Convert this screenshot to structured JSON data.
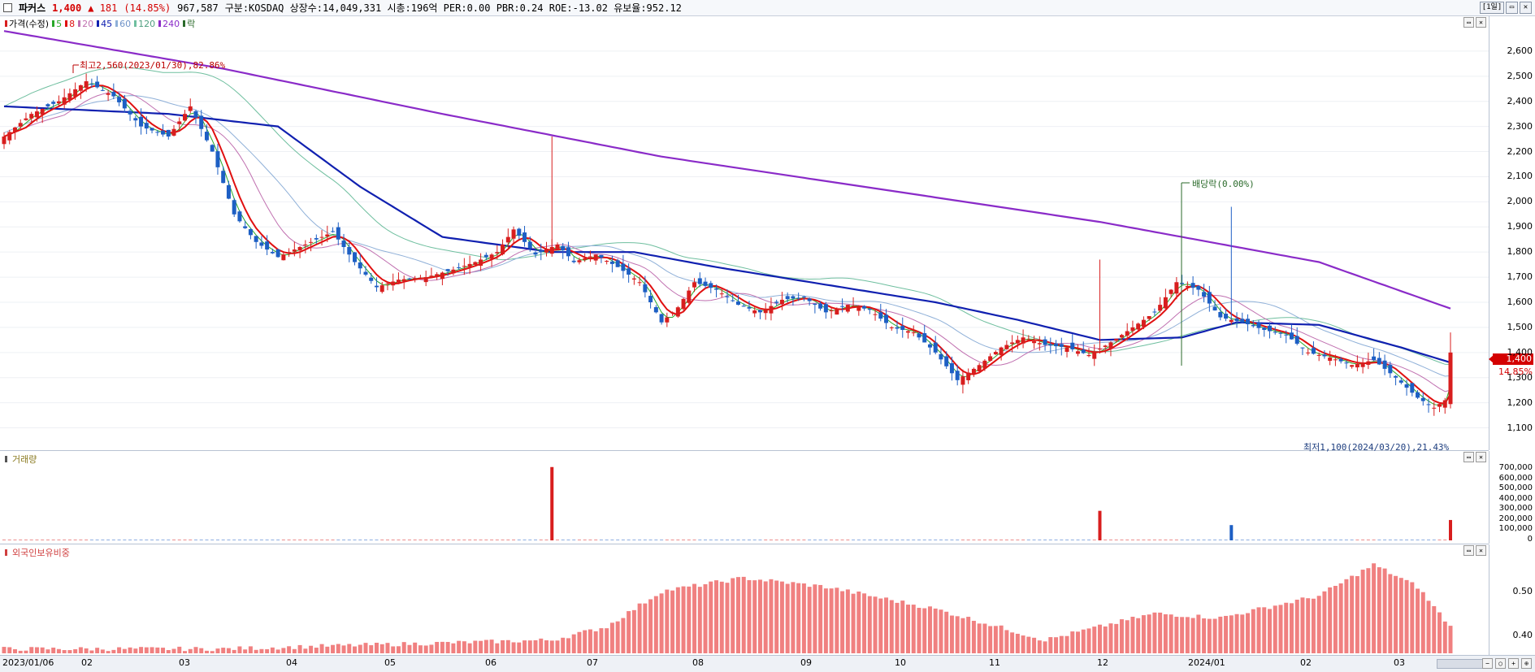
{
  "header": {
    "name": "파커스",
    "price": "1,400",
    "change": "▲ 181",
    "change_pct": "(14.85%)",
    "volume": "967,587",
    "info": "구분:KOSDAQ 상장수:14,049,331 시총:196억 PER:0.00 PBR:0.24 ROE:-13.02 유보율:952.12",
    "period": "[1일]"
  },
  "price_panel": {
    "legend": {
      "price": "가격(수정)",
      "ma5": "5",
      "ma8": "8",
      "ma20": "20",
      "ma45": "45",
      "ma60": "60",
      "ma120": "120",
      "ma240": "240",
      "drop": "락"
    },
    "y_ticks": [
      "2,600",
      "2,500",
      "2,400",
      "2,300",
      "2,200",
      "2,100",
      "2,000",
      "1,900",
      "1,800",
      "1,700",
      "1,600",
      "1,500",
      "1,400",
      "1,300",
      "1,200",
      "1,100"
    ],
    "high_note": "최고2,560(2023/01/30),82.86%",
    "low_note": "최저1,100(2024/03/20),21.43%",
    "dividend_note": "배당락(0.00%)",
    "price_label": "1,400",
    "pct_label": "14.85%"
  },
  "volume_panel": {
    "title": "거래량",
    "y_ticks": [
      "700,000",
      "600,000",
      "500,000",
      "400,000",
      "300,000",
      "200,000",
      "100,000",
      "0"
    ]
  },
  "foreign_panel": {
    "title": "외국인보유비중",
    "y_ticks": [
      "0.50",
      "0.40"
    ]
  },
  "x_axis": [
    "2023/01/06",
    "02",
    "03",
    "04",
    "05",
    "06",
    "07",
    "08",
    "09",
    "10",
    "11",
    "12",
    "2024/01",
    "02",
    "03"
  ],
  "colors": {
    "up": "#d81e1e",
    "down": "#1d5fc4",
    "ma5": "#29a829",
    "ma8": "#e01010",
    "ma20": "#c070b0",
    "ma45": "#1020b0",
    "ma60": "#8fb0d8",
    "ma120": "#6fbf9f",
    "ma240": "#8a2bc8"
  },
  "chart_data": {
    "type": "candlestick",
    "x_range": [
      "2023-01-06",
      "2024-03-21"
    ],
    "ylim": [
      1050,
      2700
    ],
    "price_close_series": [
      [
        0,
        2260
      ],
      [
        5,
        2350
      ],
      [
        10,
        2400
      ],
      [
        15,
        2480
      ],
      [
        20,
        2420
      ],
      [
        25,
        2300
      ],
      [
        30,
        2260
      ],
      [
        34,
        2380
      ],
      [
        38,
        2200
      ],
      [
        42,
        1950
      ],
      [
        46,
        1840
      ],
      [
        50,
        1780
      ],
      [
        55,
        1830
      ],
      [
        60,
        1880
      ],
      [
        64,
        1760
      ],
      [
        68,
        1660
      ],
      [
        72,
        1690
      ],
      [
        77,
        1700
      ],
      [
        82,
        1730
      ],
      [
        86,
        1760
      ],
      [
        90,
        1800
      ],
      [
        93,
        1890
      ],
      [
        97,
        1790
      ],
      [
        101,
        1830
      ],
      [
        104,
        1760
      ],
      [
        108,
        1790
      ],
      [
        112,
        1740
      ],
      [
        116,
        1680
      ],
      [
        120,
        1520
      ],
      [
        123,
        1580
      ],
      [
        126,
        1680
      ],
      [
        130,
        1650
      ],
      [
        134,
        1590
      ],
      [
        138,
        1560
      ],
      [
        142,
        1610
      ],
      [
        146,
        1620
      ],
      [
        150,
        1560
      ],
      [
        154,
        1590
      ],
      [
        158,
        1570
      ],
      [
        162,
        1500
      ],
      [
        166,
        1480
      ],
      [
        170,
        1400
      ],
      [
        174,
        1290
      ],
      [
        178,
        1350
      ],
      [
        182,
        1420
      ],
      [
        186,
        1460
      ],
      [
        190,
        1430
      ],
      [
        194,
        1420
      ],
      [
        198,
        1390
      ],
      [
        202,
        1440
      ],
      [
        206,
        1500
      ],
      [
        210,
        1560
      ],
      [
        214,
        1680
      ],
      [
        218,
        1650
      ],
      [
        222,
        1540
      ],
      [
        226,
        1520
      ],
      [
        230,
        1490
      ],
      [
        234,
        1470
      ],
      [
        238,
        1400
      ],
      [
        242,
        1380
      ],
      [
        246,
        1350
      ],
      [
        250,
        1370
      ],
      [
        254,
        1300
      ],
      [
        258,
        1220
      ],
      [
        261,
        1180
      ],
      [
        263,
        1210
      ],
      [
        264,
        1400
      ]
    ],
    "ma240_series": [
      [
        0,
        2680
      ],
      [
        40,
        2530
      ],
      [
        80,
        2350
      ],
      [
        120,
        2180
      ],
      [
        160,
        2050
      ],
      [
        200,
        1920
      ],
      [
        240,
        1760
      ],
      [
        264,
        1575
      ]
    ],
    "ma45_series": [
      [
        0,
        2380
      ],
      [
        30,
        2350
      ],
      [
        50,
        2300
      ],
      [
        65,
        2060
      ],
      [
        80,
        1860
      ],
      [
        100,
        1800
      ],
      [
        115,
        1800
      ],
      [
        130,
        1740
      ],
      [
        150,
        1670
      ],
      [
        170,
        1600
      ],
      [
        185,
        1530
      ],
      [
        200,
        1450
      ],
      [
        215,
        1460
      ],
      [
        225,
        1520
      ],
      [
        240,
        1510
      ],
      [
        255,
        1420
      ],
      [
        264,
        1360
      ]
    ],
    "volume_series": [
      [
        100,
        720000
      ],
      [
        200,
        290000
      ],
      [
        224,
        150000
      ],
      [
        264,
        200000
      ],
      [
        265,
        90000
      ]
    ],
    "foreign_series": [
      [
        0,
        0.37
      ],
      [
        40,
        0.37
      ],
      [
        100,
        0.39
      ],
      [
        110,
        0.42
      ],
      [
        120,
        0.5
      ],
      [
        135,
        0.53
      ],
      [
        150,
        0.51
      ],
      [
        170,
        0.46
      ],
      [
        190,
        0.39
      ],
      [
        210,
        0.45
      ],
      [
        222,
        0.44
      ],
      [
        240,
        0.49
      ],
      [
        250,
        0.56
      ],
      [
        258,
        0.51
      ],
      [
        264,
        0.42
      ]
    ],
    "foreign_ylim": [
      0.36,
      0.58
    ],
    "volume_ylim": [
      0,
      750000
    ]
  }
}
